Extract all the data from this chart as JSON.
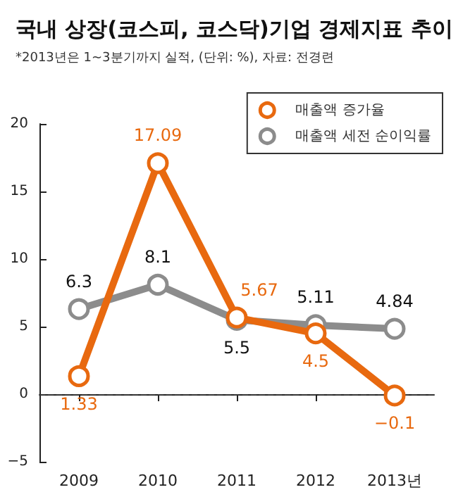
{
  "chart_data": {
    "type": "line",
    "title": "국내 상장(코스피, 코스닥)기업 경제지표 추이",
    "subtitle": "*2013년은 1~3분기까지 실적, (단위: %), 자료: 전경련",
    "categories": [
      "2009",
      "2010",
      "2011",
      "2012",
      "2013년"
    ],
    "series": [
      {
        "name": "매출액 증가율",
        "color": "#e8690f",
        "values": [
          1.33,
          17.09,
          5.67,
          4.5,
          -0.1
        ],
        "value_labels": [
          "1.33",
          "17.09",
          "5.67",
          "4.5",
          "−0.1"
        ]
      },
      {
        "name": "매출액 세전 순이익률",
        "color": "#8c8c8c",
        "values": [
          6.3,
          8.1,
          5.5,
          5.11,
          4.84
        ],
        "value_labels": [
          "6.3",
          "8.1",
          "5.5",
          "5.11",
          "4.84"
        ]
      }
    ],
    "ylim": [
      -5,
      20
    ],
    "yticks": [
      {
        "value": -5,
        "label": "−5"
      },
      0,
      5,
      10,
      15,
      20
    ],
    "ref_lines": [
      {
        "axis": "y",
        "value": 0,
        "line_style": "dashed",
        "color": "#333333"
      }
    ],
    "legend": "top right",
    "marker": "circle",
    "line_style": "solid",
    "grid": false
  }
}
